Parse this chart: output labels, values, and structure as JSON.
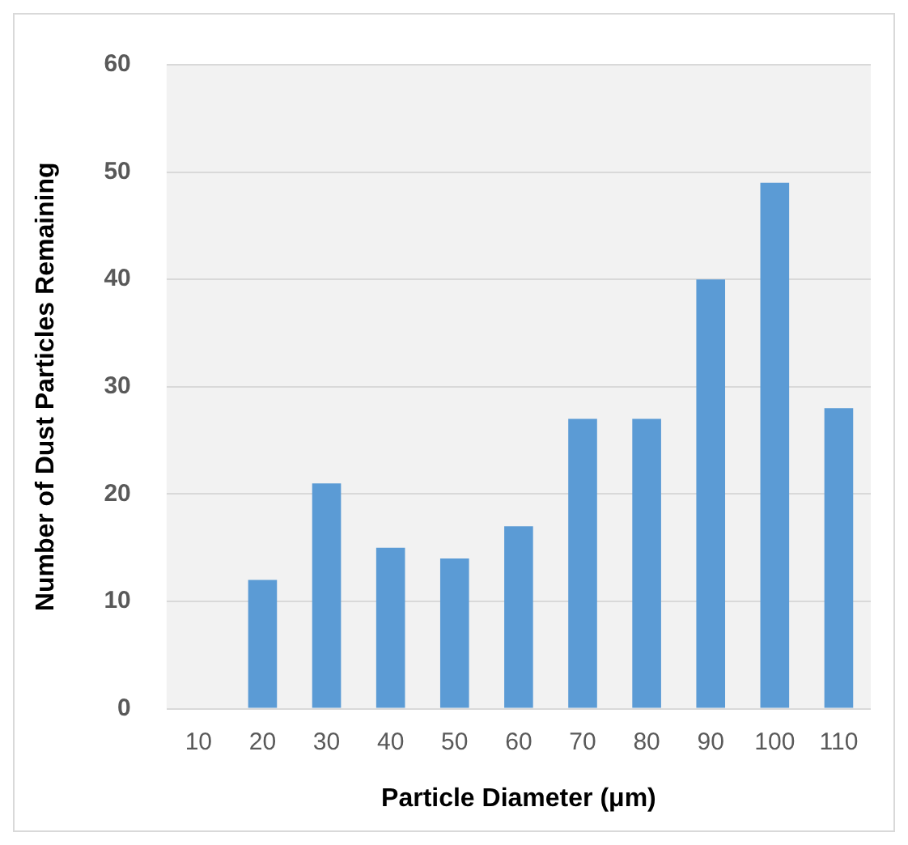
{
  "chart_data": {
    "type": "bar",
    "xlabel": "Particle Diameter (μm)",
    "ylabel": "Number of Dust Particles Remaining",
    "categories": [
      "10",
      "20",
      "30",
      "40",
      "50",
      "60",
      "70",
      "80",
      "90",
      "100",
      "110"
    ],
    "values": [
      0,
      12,
      21,
      15,
      14,
      17,
      27,
      27,
      40,
      49,
      28
    ],
    "color": "#5b9bd5",
    "ylim": [
      0,
      60
    ],
    "yticks": [
      0,
      10,
      20,
      30,
      40,
      50,
      60
    ],
    "grid": "y"
  }
}
